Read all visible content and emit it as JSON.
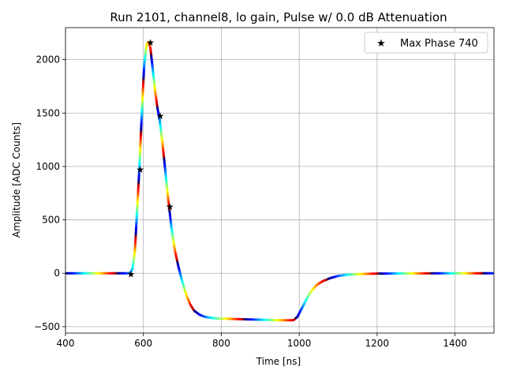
{
  "chart_data": {
    "type": "scatter",
    "title": "Run 2101, channel8, lo gain, Pulse w/ 0.0 dB Attenuation",
    "xlabel": "Time [ns]",
    "ylabel": "Amplitude [ADC Counts]",
    "xlim": [
      400,
      1500
    ],
    "ylim": [
      -560,
      2300
    ],
    "xticks": [
      400,
      600,
      800,
      1000,
      1200,
      1400
    ],
    "yticks": [
      -500,
      0,
      500,
      1000,
      1500,
      2000
    ],
    "xtick_labels": [
      "400",
      "600",
      "800",
      "1000",
      "1200",
      "1400"
    ],
    "ytick_labels": [
      "−500",
      "0",
      "500",
      "1000",
      "1500",
      "2000"
    ],
    "grid": true,
    "legend": {
      "position": "top-right",
      "entries": [
        "Max Phase 740"
      ]
    },
    "colormap": "jet",
    "series": [
      {
        "name": "pulse",
        "marker": "dot",
        "x": [
          400,
          560,
          566,
          572,
          578,
          584,
          590,
          596,
          602,
          608,
          614,
          618,
          624,
          630,
          636,
          642,
          648,
          654,
          660,
          666,
          672,
          680,
          690,
          700,
          710,
          720,
          730,
          745,
          760,
          780,
          800,
          850,
          900,
          950,
          985,
          995,
          1005,
          1015,
          1025,
          1035,
          1045,
          1060,
          1080,
          1100,
          1120,
          1150,
          1200,
          1300,
          1400,
          1500
        ],
        "y": [
          0,
          0,
          3,
          40,
          200,
          600,
          1000,
          1500,
          1950,
          2140,
          2170,
          2110,
          1910,
          1710,
          1550,
          1430,
          1250,
          1040,
          820,
          620,
          430,
          230,
          60,
          -80,
          -200,
          -290,
          -350,
          -390,
          -410,
          -420,
          -425,
          -430,
          -435,
          -440,
          -440,
          -410,
          -340,
          -270,
          -200,
          -150,
          -110,
          -75,
          -45,
          -25,
          -15,
          -8,
          -3,
          -1,
          0,
          0
        ]
      },
      {
        "name": "Max Phase 740",
        "marker": "star",
        "x": [
          568,
          592,
          618,
          643,
          668
        ],
        "y": [
          -5,
          975,
          2165,
          1475,
          625
        ]
      }
    ]
  }
}
